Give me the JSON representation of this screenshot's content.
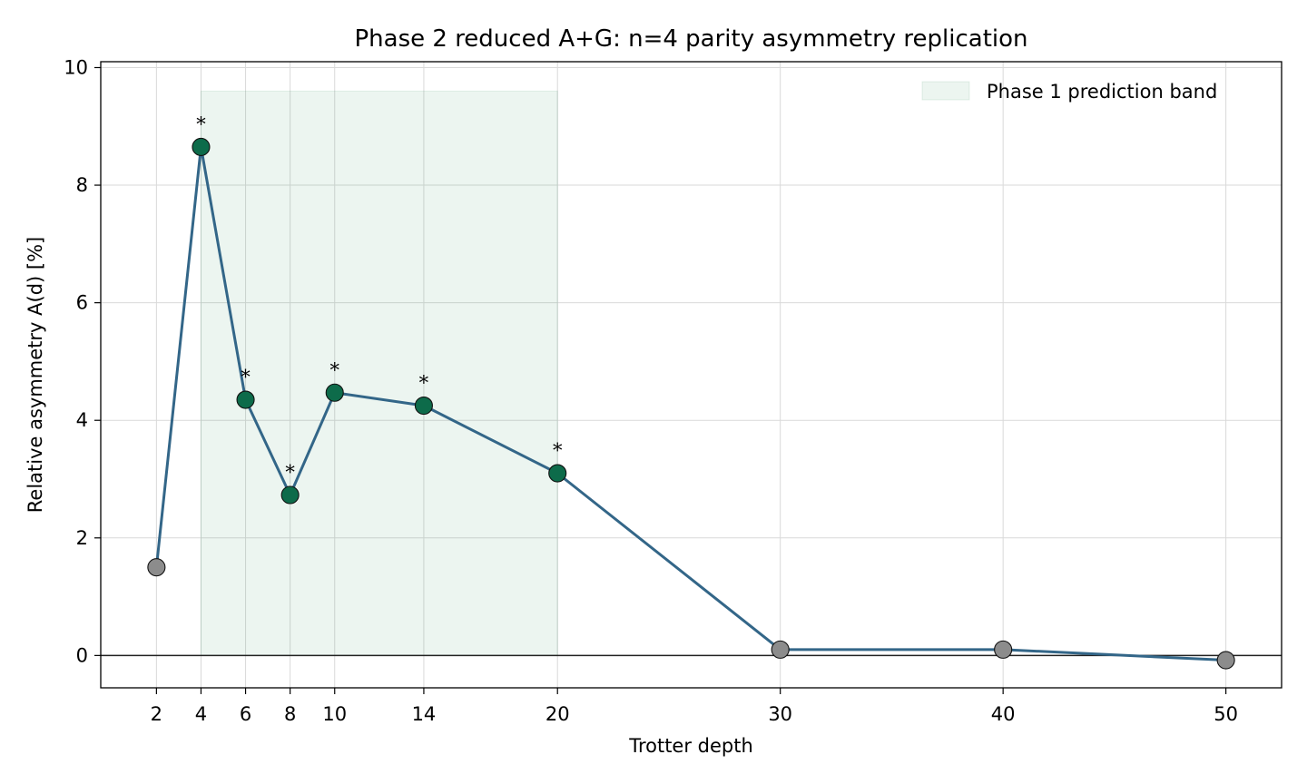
{
  "chart_data": {
    "type": "line",
    "title": "Phase 2 reduced A+G: n=4 parity asymmetry replication",
    "xlabel": "Trotter depth",
    "ylabel": "Relative asymmetry A(d) [%]",
    "xlim": [
      -0.5,
      52.5
    ],
    "ylim": [
      -0.55,
      10.1
    ],
    "xticks": [
      2,
      4,
      6,
      8,
      10,
      14,
      20,
      30,
      40,
      50
    ],
    "yticks": [
      0,
      2,
      4,
      6,
      8,
      10
    ],
    "grid": true,
    "legend_position": "top-right",
    "band": {
      "label": "Phase 1 prediction band",
      "x": [
        4,
        20
      ],
      "y": [
        0,
        9.6
      ],
      "color": "#2e8b57"
    },
    "reference_line": {
      "y": 0,
      "color": "#222222"
    },
    "line_color": "#336688",
    "marker_significant_color": "#0d6b4a",
    "marker_other_color": "#8c8c8c",
    "significance_marker": "*",
    "series": [
      {
        "points": [
          {
            "x": 2,
            "y": 1.5,
            "significant": false
          },
          {
            "x": 4,
            "y": 8.65,
            "significant": true
          },
          {
            "x": 6,
            "y": 4.35,
            "significant": true
          },
          {
            "x": 8,
            "y": 2.73,
            "significant": true
          },
          {
            "x": 10,
            "y": 4.47,
            "significant": true
          },
          {
            "x": 14,
            "y": 4.25,
            "significant": true
          },
          {
            "x": 20,
            "y": 3.1,
            "significant": true
          },
          {
            "x": 30,
            "y": 0.1,
            "significant": false
          },
          {
            "x": 40,
            "y": 0.1,
            "significant": false
          },
          {
            "x": 50,
            "y": -0.08,
            "significant": false
          }
        ]
      }
    ]
  }
}
